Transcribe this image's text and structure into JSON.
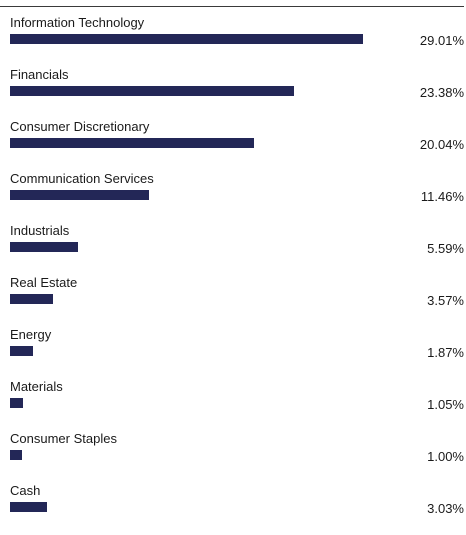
{
  "chart_data": {
    "type": "bar",
    "orientation": "horizontal",
    "categories": [
      "Information Technology",
      "Financials",
      "Consumer Discretionary",
      "Communication Services",
      "Industrials",
      "Real Estate",
      "Energy",
      "Materials",
      "Consumer Staples",
      "Cash"
    ],
    "values": [
      29.01,
      23.38,
      20.04,
      11.46,
      5.59,
      3.57,
      1.87,
      1.05,
      1.0,
      3.03
    ],
    "value_labels": [
      "29.01%",
      "23.38%",
      "20.04%",
      "11.46%",
      "5.59%",
      "3.57%",
      "1.87%",
      "1.05%",
      "1.00%",
      "3.03%"
    ],
    "bar_color": "#232757",
    "xlim": [
      0,
      29.01
    ],
    "grid": false,
    "legend": "none"
  }
}
